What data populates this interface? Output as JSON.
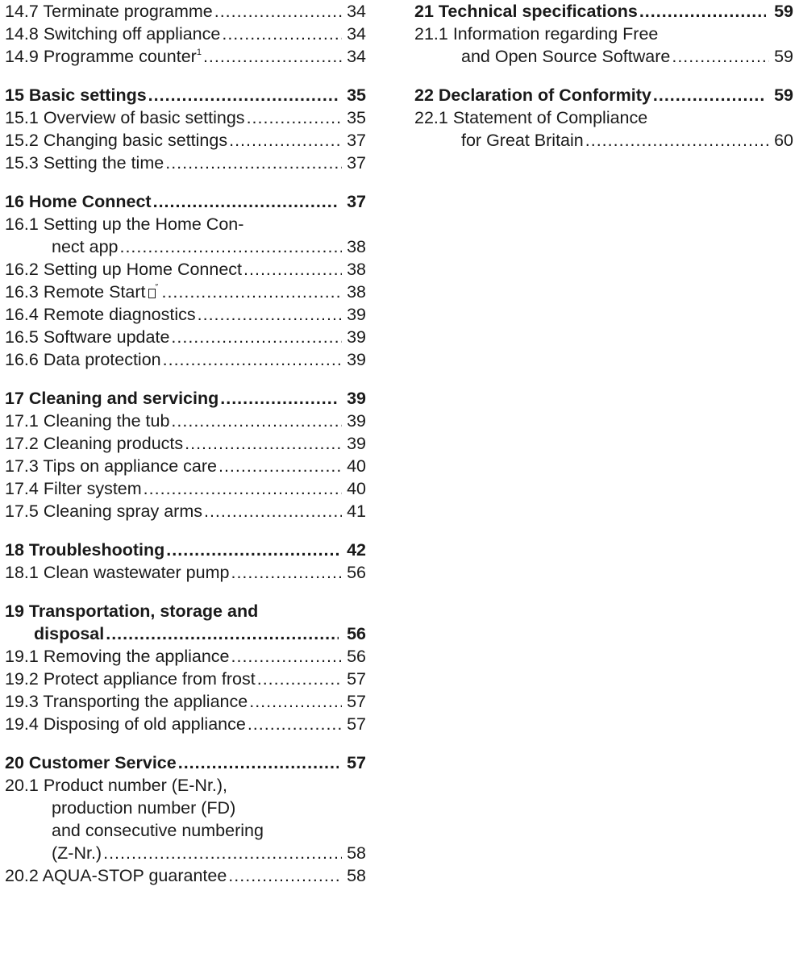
{
  "left_column": {
    "e_14_7": {
      "text": "14.7 Terminate programme",
      "page": "34"
    },
    "e_14_8": {
      "text": "14.8 Switching off appliance",
      "page": "34"
    },
    "e_14_9": {
      "text": "14.9 Programme counter",
      "sup": "1",
      "page": "34"
    },
    "h_15": {
      "text": "15 Basic settings",
      "page": "35"
    },
    "e_15_1": {
      "text": "15.1 Overview of basic settings",
      "page": "35"
    },
    "e_15_2": {
      "text": "15.2 Changing basic settings",
      "page": "37"
    },
    "e_15_3": {
      "text": "15.3 Setting the time",
      "page": "37"
    },
    "h_16": {
      "text": "16 Home Connect",
      "page": "37"
    },
    "e_16_1": {
      "line1": "16.1 Setting up the Home Con-",
      "line2": "nect app",
      "page": "38"
    },
    "e_16_2": {
      "text": "16.2 Setting up Home Connect",
      "page": "38"
    },
    "e_16_3": {
      "text": "16.3 Remote Start",
      "icon": "remote-start-icon",
      "page": "38"
    },
    "e_16_4": {
      "text": "16.4 Remote diagnostics",
      "page": "39"
    },
    "e_16_5": {
      "text": "16.5 Software update",
      "page": "39"
    },
    "e_16_6": {
      "text": "16.6 Data protection",
      "page": "39"
    },
    "h_17": {
      "text": "17 Cleaning and servicing",
      "page": "39"
    },
    "e_17_1": {
      "text": "17.1 Cleaning the tub",
      "page": "39"
    },
    "e_17_2": {
      "text": "17.2 Cleaning products",
      "page": "39"
    },
    "e_17_3": {
      "text": "17.3 Tips on appliance care",
      "page": "40"
    },
    "e_17_4": {
      "text": "17.4 Filter system",
      "page": "40"
    },
    "e_17_5": {
      "text": "17.5 Cleaning spray arms",
      "page": "41"
    },
    "h_18": {
      "text": "18 Troubleshooting",
      "page": "42"
    },
    "e_18_1": {
      "text": "18.1 Clean wastewater pump",
      "page": "56"
    },
    "h_19": {
      "line1": "19 Transportation, storage and",
      "line2": "disposal",
      "page": "56"
    },
    "e_19_1": {
      "text": "19.1 Removing the appliance",
      "page": "56"
    },
    "e_19_2": {
      "text": "19.2 Protect appliance from frost",
      "page": "57"
    },
    "e_19_3": {
      "text": "19.3 Transporting the appliance",
      "page": "57"
    },
    "e_19_4": {
      "text": "19.4 Disposing of old appliance",
      "page": "57"
    },
    "h_20": {
      "text": "20 Customer Service",
      "page": "57"
    },
    "e_20_1": {
      "line1": "20.1 Product number (E-Nr.),",
      "line2": "production number (FD)",
      "line3": "and consecutive numbering",
      "line4": "(Z-Nr.)",
      "page": "58"
    },
    "e_20_2": {
      "text": "20.2 AQUA-STOP guarantee",
      "page": "58"
    }
  },
  "right_column": {
    "h_21": {
      "text": "21 Technical specifications",
      "page": "59"
    },
    "e_21_1": {
      "line1": "21.1 Information regarding Free",
      "line2": "and Open Source Software",
      "page": "59"
    },
    "h_22": {
      "text": "22 Declaration of Conformity",
      "page": "59"
    },
    "e_22_1": {
      "line1": "22.1 Statement of Compliance",
      "line2": "for Great Britain",
      "page": "60"
    }
  }
}
